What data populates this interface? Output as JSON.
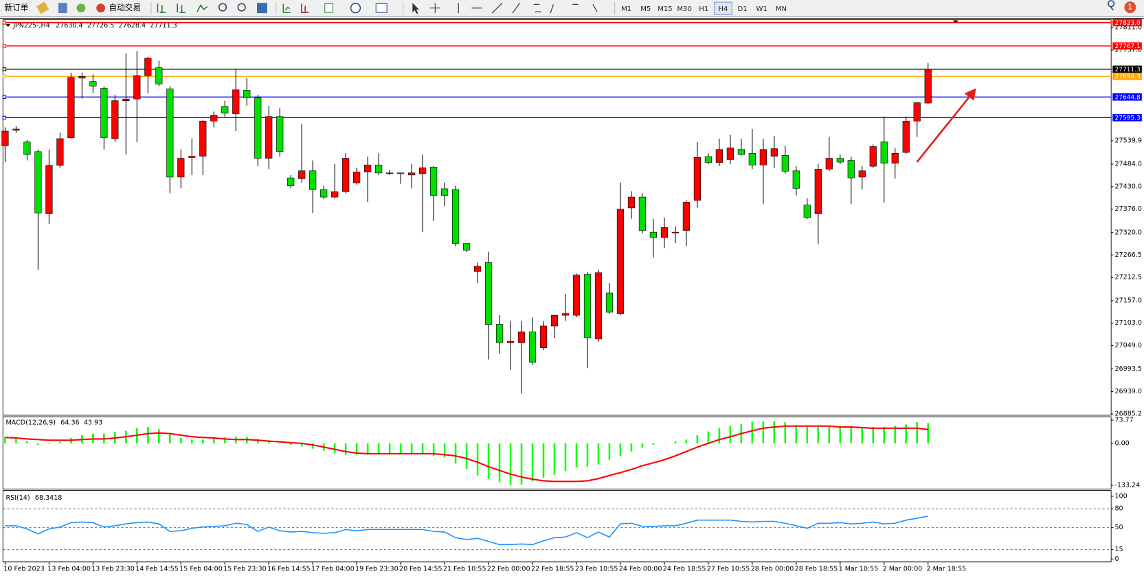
{
  "toolbar": {
    "new_order": "新订单",
    "auto_trading": "自动交易",
    "timeframes": [
      "M1",
      "M5",
      "M15",
      "M30",
      "H1",
      "H4",
      "D1",
      "W1",
      "MN"
    ],
    "active_timeframe": 5,
    "badge": "1"
  },
  "chart_data": [
    {
      "type": "candlestick",
      "title": "JPN225-,H4",
      "up_color": "#ff0000",
      "down_color": "#00e000",
      "categories": [
        "10 Feb 2023",
        null,
        null,
        null,
        "13 Feb 04:00",
        null,
        null,
        null,
        "13 Feb 23:30",
        null,
        null,
        null,
        "14 Feb 14:55",
        null,
        null,
        null,
        "15 Feb 04:00",
        null,
        null,
        null,
        "15 Feb 23:30",
        null,
        null,
        null,
        "16 Feb 14:55",
        null,
        null,
        null,
        "17 Feb 04:00",
        null,
        null,
        null,
        "19 Feb 23:30",
        null,
        null,
        null,
        "20 Feb 14:55",
        null,
        null,
        null,
        "21 Feb 10:55",
        null,
        null,
        null,
        "22 Feb 00:00",
        null,
        null,
        null,
        "22 Feb 18:55",
        null,
        null,
        null,
        "23 Feb 10:55",
        null,
        null,
        null,
        "24 Feb 00:00",
        null,
        null,
        null,
        "24 Feb 18:55",
        null,
        null,
        null,
        "27 Feb 10:55",
        null,
        null,
        null,
        "28 Feb 00:00",
        null,
        null,
        null,
        "28 Feb 18:55",
        null,
        null,
        null,
        "1 Mar 10:55",
        null,
        null,
        null,
        "2 Mar 00:00",
        null,
        null,
        null,
        "2 Mar 18:55"
      ],
      "open": [
        27528,
        27565,
        27537,
        27514,
        27365,
        27481,
        27547,
        27690,
        27682,
        27666,
        27545,
        27636,
        27640,
        27696,
        27715,
        27664,
        27453,
        27500,
        27503,
        27587,
        27622,
        27605,
        27661,
        27643,
        27498,
        27598,
        27451,
        27449,
        27468,
        27423,
        27405,
        27418,
        27439,
        27465,
        27482,
        27463,
        27463,
        27458,
        27461,
        27477,
        27425,
        27423,
        27294,
        27227,
        27248,
        27100,
        27056,
        27056,
        27082,
        27044,
        27096,
        27122,
        27122,
        27220,
        27065,
        27175,
        27126,
        27379,
        27405,
        27321,
        27308,
        27321,
        27325,
        27397,
        27502,
        27488,
        27495,
        27519,
        27510,
        27482,
        27503,
        27505,
        27468,
        27386,
        27365,
        27472,
        27498,
        27493,
        27453,
        27479,
        27537,
        27486,
        27512,
        27587,
        27630.4
      ],
      "high": [
        27572,
        27575,
        27542,
        27519,
        27519,
        27559,
        27703,
        27703,
        27699,
        27671,
        27650,
        27750,
        27755,
        27741,
        27732,
        27671,
        27519,
        27545,
        27589,
        27610,
        27636,
        27711,
        27690,
        27650,
        27624,
        27619,
        27458,
        27580,
        27493,
        27432,
        27484,
        27510,
        27475,
        27502,
        27510,
        27470,
        27463,
        27484,
        27507,
        27479,
        27440,
        27432,
        27294,
        27248,
        27274,
        27122,
        27108,
        27108,
        27117,
        27108,
        27122,
        27173,
        27222,
        27225,
        27231,
        27199,
        27440,
        27419,
        27414,
        27353,
        27356,
        27335,
        27397,
        27537,
        27510,
        27545,
        27554,
        27545,
        27568,
        27545,
        27551,
        27528,
        27479,
        27402,
        27484,
        27549,
        27507,
        27502,
        27479,
        27531,
        27598,
        27523,
        27598,
        27633,
        27726.5
      ],
      "low": [
        27489,
        27559,
        27493,
        27231,
        27341,
        27475,
        27545,
        27641,
        27654,
        27519,
        27537,
        27507,
        27537,
        27654,
        27671,
        27414,
        27426,
        27458,
        27458,
        27572,
        27598,
        27563,
        27624,
        27479,
        27472,
        27502,
        27426,
        27440,
        27367,
        27400,
        27402,
        27414,
        27435,
        27393,
        27458,
        27458,
        27437,
        27426,
        27321,
        27348,
        27383,
        27287,
        27274,
        27199,
        27016,
        27030,
        26991,
        26934,
        27003,
        27038,
        27068,
        27108,
        27117,
        26995,
        27059,
        27126,
        27122,
        27353,
        27318,
        27260,
        27283,
        27295,
        27287,
        27379,
        27484,
        27479,
        27484,
        27505,
        27472,
        27388,
        27475,
        27461,
        27409,
        27353,
        27292,
        27467,
        27484,
        27388,
        27423,
        27475,
        27391,
        27449,
        27509,
        27549,
        27628.4
      ],
      "close": [
        27563,
        27568,
        27507,
        27367,
        27481,
        27545,
        27692,
        27694,
        27671,
        27547,
        27636,
        27640,
        27696,
        27738,
        27676,
        27453,
        27498,
        27503,
        27587,
        27601,
        27606,
        27662,
        27643,
        27498,
        27598,
        27514,
        27432,
        27468,
        27423,
        27405,
        27418,
        27498,
        27465,
        27482,
        27463,
        27463,
        27461,
        27463,
        27475,
        27409,
        27409,
        27294,
        27278,
        27239,
        27100,
        27056,
        27059,
        27082,
        27009,
        27096,
        27122,
        27126,
        27218,
        27068,
        27224,
        27129,
        27376,
        27405,
        27325,
        27308,
        27332,
        27321,
        27393,
        27500,
        27488,
        27519,
        27523,
        27507,
        27482,
        27519,
        27521,
        27467,
        27426,
        27356,
        27472,
        27498,
        27489,
        27451,
        27468,
        27526,
        27486,
        27510,
        27587,
        27631,
        27711.3
      ],
      "ylim": [
        26884,
        27830
      ],
      "yticks": [
        {
          "value": 27811,
          "label": "27811.0"
        },
        {
          "value": 27757,
          "label": "27757.0"
        },
        27539.9,
        {
          "value": 27484,
          "label": "27484.0"
        },
        {
          "value": 27430,
          "label": "27430.0"
        },
        {
          "value": 27376,
          "label": "27376.0"
        },
        {
          "value": 27320,
          "label": "27320.0"
        },
        27266.5,
        27212.5,
        {
          "value": 27157,
          "label": "27157.0"
        },
        {
          "value": 27103,
          "label": "27103.0"
        },
        {
          "value": 27049,
          "label": "27049.0"
        },
        26993.5,
        {
          "value": 26939,
          "label": "26939.0"
        },
        26885.2
      ],
      "price_lines": [
        {
          "value": 27823,
          "label": "27823.0",
          "color": "#ff0000"
        },
        {
          "value": 27767.1,
          "color": "#ff0000"
        },
        {
          "value": 27711.3,
          "color": "#000000"
        },
        {
          "value": 27694.3,
          "color": "#ffa500"
        },
        {
          "value": 27644.8,
          "color": "#0000ff"
        },
        {
          "value": 27595.3,
          "color": "#0000ff"
        }
      ]
    },
    {
      "type": "macd",
      "title": "MACD(12,26,9)",
      "series": [
        {
          "type": "bar",
          "color": "#00ff00",
          "values": [
            19,
            14,
            7,
            -5,
            -2,
            5,
            17,
            26,
            31,
            31,
            36,
            40,
            48,
            52,
            45,
            31,
            17,
            12,
            12,
            14,
            19,
            21,
            21,
            14,
            10,
            2,
            -5,
            -10,
            -17,
            -24,
            -31,
            -36,
            -36,
            -36,
            -36,
            -36,
            -36,
            -33,
            -36,
            -40,
            -45,
            -64,
            -81,
            -102,
            -114,
            -124,
            -133,
            -131,
            -121,
            -109,
            -100,
            -88,
            -76,
            -74,
            -67,
            -52,
            -40,
            -26,
            -14,
            -5,
            1,
            7,
            12,
            26,
            38,
            48,
            55,
            62,
            69,
            71,
            71,
            67,
            57,
            52,
            52,
            52,
            55,
            55,
            52,
            52,
            52,
            55,
            60,
            67,
            64.36
          ]
        },
        {
          "type": "line",
          "color": "#ff0000",
          "values": [
            19,
            17,
            14,
            12,
            10,
            10,
            10,
            12,
            14,
            14,
            17,
            21,
            26,
            31,
            33,
            31,
            26,
            21,
            19,
            17,
            14,
            12,
            12,
            10,
            7,
            5,
            2,
            0,
            -5,
            -12,
            -19,
            -26,
            -31,
            -33,
            -33,
            -33,
            -33,
            -33,
            -33,
            -33,
            -36,
            -40,
            -48,
            -60,
            -74,
            -86,
            -98,
            -107,
            -114,
            -119,
            -121,
            -121,
            -121,
            -119,
            -112,
            -102,
            -93,
            -83,
            -71,
            -62,
            -52,
            -40,
            -26,
            -12,
            0,
            12,
            21,
            31,
            40,
            48,
            52,
            55,
            55,
            55,
            55,
            55,
            52,
            52,
            50,
            48,
            48,
            48,
            48,
            48,
            43.93
          ]
        }
      ],
      "ylim": [
        -145,
        80
      ],
      "yticks": [
        73.77,
        {
          "value": 0,
          "label": "0.00"
        },
        -133.24
      ]
    },
    {
      "type": "line",
      "title": "RSI(14)",
      "color": "#1e90ff",
      "values": [
        53,
        53,
        48,
        40,
        48,
        51,
        58,
        59,
        58,
        51,
        53,
        56,
        58,
        59,
        56,
        44,
        45,
        49,
        51,
        52,
        53,
        57,
        55,
        44,
        51,
        45,
        43,
        44,
        42,
        41,
        42,
        47,
        45,
        47,
        47,
        47,
        47,
        47,
        47,
        44,
        43,
        34,
        31,
        33,
        28,
        23,
        23,
        24,
        23,
        29,
        34,
        35,
        42,
        34,
        43,
        35,
        56,
        57,
        52,
        52,
        53,
        53,
        57,
        62,
        62,
        62,
        62,
        60,
        59,
        60,
        60,
        57,
        53,
        49,
        57,
        57,
        58,
        56,
        57,
        59,
        56,
        57,
        62,
        65,
        68.3418
      ],
      "ylim": [
        0,
        100
      ],
      "yticks": [
        100,
        80,
        50,
        15,
        0
      ],
      "grid": "dashed"
    }
  ]
}
